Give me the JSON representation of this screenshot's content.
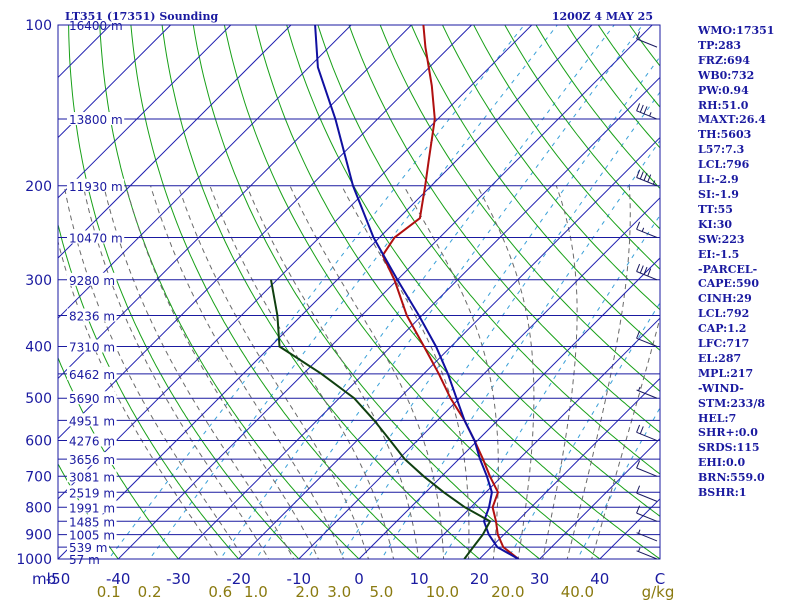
{
  "chart_data": {
    "type": "line",
    "title": "LT351 (17351) Sounding",
    "time_label": "1200Z  4 MAY 25",
    "y_axis": {
      "scale": "log",
      "unit_label": "mb",
      "range": [
        100,
        1000
      ],
      "ticks": [
        "100",
        "200",
        "300",
        "400",
        "500",
        "600",
        "700",
        "800",
        "900",
        "1000"
      ]
    },
    "x_axis": {
      "range": [
        -50,
        50
      ],
      "ticks": [
        "-50",
        "-40",
        "-30",
        "-20",
        "-10",
        "0",
        "10",
        "20",
        "30",
        "40",
        "C"
      ],
      "skew": "temperature lines slant about 45 degrees toward higher temperature aloft"
    },
    "mixing_ratio_axis": {
      "ticks": [
        "0.1",
        "0.2",
        "0.6",
        "1.0",
        "2.0",
        "3.0",
        "5.0",
        "10.0",
        "20.0",
        "40.0"
      ],
      "unit_label": "g/kg"
    },
    "height_levels": [
      {
        "p": 100,
        "label": "16400 m"
      },
      {
        "p": 150,
        "label": "13800 m"
      },
      {
        "p": 200,
        "label": "11930 m"
      },
      {
        "p": 250,
        "label": "10470 m"
      },
      {
        "p": 300,
        "label": "9280 m"
      },
      {
        "p": 350,
        "label": "8236 m"
      },
      {
        "p": 400,
        "label": "7310 m"
      },
      {
        "p": 450,
        "label": "6462 m"
      },
      {
        "p": 500,
        "label": "5690 m"
      },
      {
        "p": 550,
        "label": "4951 m"
      },
      {
        "p": 600,
        "label": "4276 m"
      },
      {
        "p": 650,
        "label": "3656 m"
      },
      {
        "p": 700,
        "label": "3081 m"
      },
      {
        "p": 750,
        "label": "2519 m"
      },
      {
        "p": 800,
        "label": "1991 m"
      },
      {
        "p": 850,
        "label": "1485 m"
      },
      {
        "p": 900,
        "label": "1005 m"
      },
      {
        "p": 950,
        "label": "539 m"
      },
      {
        "p": 1000,
        "label": "57 m"
      }
    ],
    "series": [
      {
        "name": "Temperature",
        "color": "#b01010",
        "points": [
          [
            1000,
            26.5
          ],
          [
            950,
            22.0
          ],
          [
            900,
            19.0
          ],
          [
            850,
            16.5
          ],
          [
            800,
            13.6
          ],
          [
            750,
            12.0
          ],
          [
            700,
            8.0
          ],
          [
            650,
            4.0
          ],
          [
            600,
            -0.5
          ],
          [
            550,
            -5.5
          ],
          [
            500,
            -11.5
          ],
          [
            450,
            -17.5
          ],
          [
            400,
            -24.5
          ],
          [
            350,
            -32.5
          ],
          [
            300,
            -40.5
          ],
          [
            270,
            -46.5
          ],
          [
            250,
            -47.5
          ],
          [
            230,
            -46.5
          ],
          [
            200,
            -51.0
          ],
          [
            180,
            -54.5
          ],
          [
            150,
            -60.5
          ],
          [
            130,
            -66.5
          ],
          [
            110,
            -74.0
          ],
          [
            100,
            -78.0
          ]
        ]
      },
      {
        "name": "Parcel",
        "color": "#1010a0",
        "points": [
          [
            1000,
            26.5
          ],
          [
            950,
            21.0
          ],
          [
            900,
            17.5
          ],
          [
            850,
            14.5
          ],
          [
            800,
            13.0
          ],
          [
            750,
            11.0
          ],
          [
            700,
            7.5
          ],
          [
            650,
            3.5
          ],
          [
            600,
            -0.5
          ],
          [
            550,
            -5.5
          ],
          [
            500,
            -10.5
          ],
          [
            450,
            -16.0
          ],
          [
            400,
            -22.5
          ],
          [
            350,
            -30.5
          ],
          [
            300,
            -40.0
          ],
          [
            250,
            -51.0
          ],
          [
            200,
            -63.0
          ],
          [
            150,
            -77.0
          ],
          [
            120,
            -88.5
          ],
          [
            100,
            -96.0
          ]
        ]
      },
      {
        "name": "Dewpoint",
        "color": "#104010",
        "points": [
          [
            1000,
            17.5
          ],
          [
            950,
            17.0
          ],
          [
            900,
            16.5
          ],
          [
            850,
            15.5
          ],
          [
            800,
            9.0
          ],
          [
            750,
            3.0
          ],
          [
            700,
            -3.0
          ],
          [
            650,
            -9.0
          ],
          [
            600,
            -14.5
          ],
          [
            550,
            -20.5
          ],
          [
            500,
            -27.5
          ],
          [
            450,
            -37.0
          ],
          [
            400,
            -48.5
          ],
          [
            350,
            -54.0
          ],
          [
            300,
            -61.0
          ]
        ]
      }
    ],
    "wind_barbs": [
      {
        "p": 110,
        "speed_kt": 10
      },
      {
        "p": 150,
        "speed_kt": 35
      },
      {
        "p": 200,
        "speed_kt": 45
      },
      {
        "p": 250,
        "speed_kt": 15
      },
      {
        "p": 300,
        "speed_kt": 40
      },
      {
        "p": 400,
        "speed_kt": 10
      },
      {
        "p": 500,
        "speed_kt": 5
      },
      {
        "p": 600,
        "speed_kt": 20
      },
      {
        "p": 700,
        "speed_kt": 10
      },
      {
        "p": 780,
        "speed_kt": 10
      },
      {
        "p": 850,
        "speed_kt": 10
      },
      {
        "p": 925,
        "speed_kt": 5
      },
      {
        "p": 1000,
        "speed_kt": 5
      }
    ]
  },
  "stats_panel": [
    "WMO:17351",
    "TP:283",
    "FRZ:694",
    "WB0:732",
    "PW:0.94",
    "RH:51.0",
    "MAXT:26.4",
    "TH:5603",
    "L57:7.3",
    "LCL:796",
    "LI:-2.9",
    "SI:-1.9",
    "TT:55",
    "KI:30",
    "SW:223",
    "EI:-1.5",
    "-PARCEL-",
    "CAPE:590",
    "CINH:29",
    "LCL:792",
    "CAP:1.2",
    "LFC:717",
    "EL:287",
    "MPL:217",
    "-WIND-",
    "STM:233/8",
    "HEL:7",
    "SHR+:0.0",
    "SRDS:115",
    "EHI:0.0",
    "BRN:559.0",
    "BSHR:1"
  ],
  "colors": {
    "isobar": "#1a1aa0",
    "isotherm": "#2020b0",
    "dry_adiabat": "#18a018",
    "moist_adiabat": "#6a6a6a",
    "mixing_ratio": "#3aa0d8",
    "label_text": "#1a1aa0",
    "mixing_label_text": "#8a7a10"
  }
}
